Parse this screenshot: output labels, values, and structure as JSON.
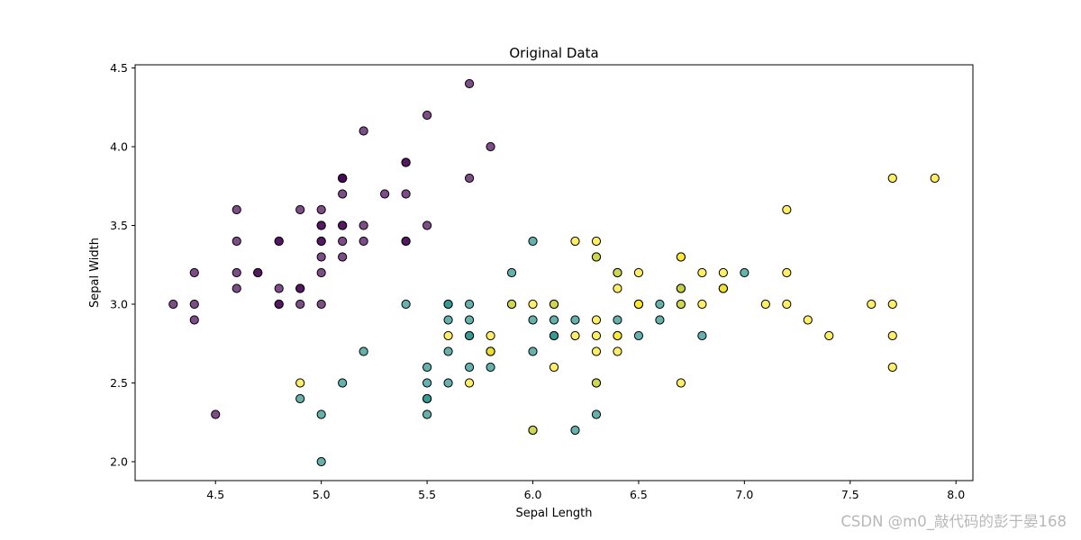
{
  "chart_data": {
    "type": "scatter",
    "title": "Original Data",
    "xlabel": "Sepal Length",
    "ylabel": "Sepal Width",
    "xlim": [
      4.12,
      8.08
    ],
    "ylim": [
      1.88,
      4.52
    ],
    "xticks": [
      "4.5",
      "5.0",
      "5.5",
      "6.0",
      "6.5",
      "7.0",
      "7.5",
      "8.0"
    ],
    "yticks": [
      "2.0",
      "2.5",
      "3.0",
      "3.5",
      "4.0",
      "4.5"
    ],
    "grid": false,
    "series": [
      {
        "color": "#440154",
        "points": [
          [
            5.1,
            3.5
          ],
          [
            4.9,
            3.0
          ],
          [
            4.7,
            3.2
          ],
          [
            4.6,
            3.1
          ],
          [
            5.0,
            3.6
          ],
          [
            5.4,
            3.9
          ],
          [
            4.6,
            3.4
          ],
          [
            5.0,
            3.4
          ],
          [
            4.4,
            2.9
          ],
          [
            4.9,
            3.1
          ],
          [
            5.4,
            3.7
          ],
          [
            4.8,
            3.4
          ],
          [
            4.8,
            3.0
          ],
          [
            4.3,
            3.0
          ],
          [
            5.8,
            4.0
          ],
          [
            5.7,
            4.4
          ],
          [
            5.4,
            3.9
          ],
          [
            5.1,
            3.5
          ],
          [
            5.7,
            3.8
          ],
          [
            5.1,
            3.8
          ],
          [
            5.4,
            3.4
          ],
          [
            5.1,
            3.7
          ],
          [
            4.6,
            3.6
          ],
          [
            5.1,
            3.3
          ],
          [
            4.8,
            3.4
          ],
          [
            5.0,
            3.0
          ],
          [
            5.0,
            3.4
          ],
          [
            5.2,
            3.5
          ],
          [
            5.2,
            3.4
          ],
          [
            4.7,
            3.2
          ],
          [
            4.8,
            3.1
          ],
          [
            5.4,
            3.4
          ],
          [
            5.2,
            4.1
          ],
          [
            5.5,
            4.2
          ],
          [
            4.9,
            3.1
          ],
          [
            5.0,
            3.2
          ],
          [
            5.5,
            3.5
          ],
          [
            4.9,
            3.6
          ],
          [
            4.4,
            3.0
          ],
          [
            5.1,
            3.4
          ],
          [
            5.0,
            3.5
          ],
          [
            4.5,
            2.3
          ],
          [
            4.4,
            3.2
          ],
          [
            5.0,
            3.5
          ],
          [
            5.1,
            3.8
          ],
          [
            4.8,
            3.0
          ],
          [
            5.1,
            3.8
          ],
          [
            4.6,
            3.2
          ],
          [
            5.3,
            3.7
          ],
          [
            5.0,
            3.3
          ]
        ]
      },
      {
        "color": "#21918c",
        "points": [
          [
            7.0,
            3.2
          ],
          [
            6.4,
            3.2
          ],
          [
            6.9,
            3.1
          ],
          [
            5.5,
            2.3
          ],
          [
            6.5,
            2.8
          ],
          [
            5.7,
            2.8
          ],
          [
            6.3,
            3.3
          ],
          [
            4.9,
            2.4
          ],
          [
            6.6,
            2.9
          ],
          [
            5.2,
            2.7
          ],
          [
            5.0,
            2.0
          ],
          [
            5.9,
            3.0
          ],
          [
            6.0,
            2.2
          ],
          [
            6.1,
            2.9
          ],
          [
            5.6,
            2.9
          ],
          [
            6.7,
            3.1
          ],
          [
            5.6,
            3.0
          ],
          [
            5.8,
            2.7
          ],
          [
            6.2,
            2.2
          ],
          [
            5.6,
            2.5
          ],
          [
            5.9,
            3.2
          ],
          [
            6.1,
            2.8
          ],
          [
            6.3,
            2.5
          ],
          [
            6.1,
            2.8
          ],
          [
            6.4,
            2.9
          ],
          [
            6.6,
            3.0
          ],
          [
            6.8,
            2.8
          ],
          [
            6.7,
            3.0
          ],
          [
            6.0,
            2.9
          ],
          [
            5.7,
            2.6
          ],
          [
            5.5,
            2.4
          ],
          [
            5.5,
            2.4
          ],
          [
            5.8,
            2.7
          ],
          [
            6.0,
            2.7
          ],
          [
            5.4,
            3.0
          ],
          [
            6.0,
            3.4
          ],
          [
            6.7,
            3.1
          ],
          [
            6.3,
            2.3
          ],
          [
            5.6,
            3.0
          ],
          [
            5.5,
            2.5
          ],
          [
            5.5,
            2.6
          ],
          [
            6.1,
            3.0
          ],
          [
            5.8,
            2.6
          ],
          [
            5.0,
            2.3
          ],
          [
            5.6,
            2.7
          ],
          [
            5.7,
            3.0
          ],
          [
            5.7,
            2.9
          ],
          [
            6.2,
            2.9
          ],
          [
            5.1,
            2.5
          ],
          [
            5.7,
            2.8
          ]
        ]
      },
      {
        "color": "#fde725",
        "points": [
          [
            6.3,
            3.3
          ],
          [
            5.8,
            2.7
          ],
          [
            7.1,
            3.0
          ],
          [
            6.3,
            2.9
          ],
          [
            6.5,
            3.0
          ],
          [
            7.6,
            3.0
          ],
          [
            4.9,
            2.5
          ],
          [
            7.3,
            2.9
          ],
          [
            6.7,
            2.5
          ],
          [
            7.2,
            3.6
          ],
          [
            6.5,
            3.2
          ],
          [
            6.4,
            2.7
          ],
          [
            6.8,
            3.0
          ],
          [
            5.7,
            2.5
          ],
          [
            5.8,
            2.8
          ],
          [
            6.4,
            3.2
          ],
          [
            6.5,
            3.0
          ],
          [
            7.7,
            3.8
          ],
          [
            7.7,
            2.6
          ],
          [
            6.0,
            2.2
          ],
          [
            6.9,
            3.2
          ],
          [
            5.6,
            2.8
          ],
          [
            7.7,
            2.8
          ],
          [
            6.3,
            2.7
          ],
          [
            6.7,
            3.3
          ],
          [
            7.2,
            3.2
          ],
          [
            6.2,
            2.8
          ],
          [
            6.1,
            3.0
          ],
          [
            6.4,
            2.8
          ],
          [
            7.2,
            3.0
          ],
          [
            7.4,
            2.8
          ],
          [
            7.9,
            3.8
          ],
          [
            6.4,
            2.8
          ],
          [
            6.3,
            2.8
          ],
          [
            6.1,
            2.6
          ],
          [
            7.7,
            3.0
          ],
          [
            6.3,
            3.4
          ],
          [
            6.4,
            3.1
          ],
          [
            6.0,
            3.0
          ],
          [
            6.9,
            3.1
          ],
          [
            6.7,
            3.1
          ],
          [
            6.9,
            3.1
          ],
          [
            5.8,
            2.7
          ],
          [
            6.8,
            3.2
          ],
          [
            6.7,
            3.3
          ],
          [
            6.7,
            3.0
          ],
          [
            6.3,
            2.5
          ],
          [
            6.5,
            3.0
          ],
          [
            6.2,
            3.4
          ],
          [
            5.9,
            3.0
          ]
        ]
      }
    ]
  },
  "watermark": "CSDN @m0_敲代码的彭于晏168"
}
